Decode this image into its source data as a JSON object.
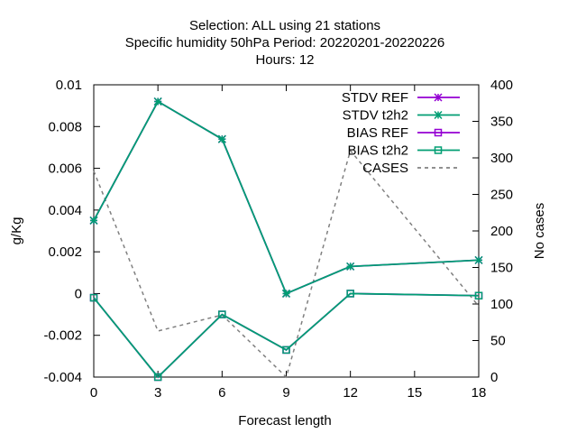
{
  "chart_data": {
    "type": "line",
    "title_lines": [
      "Selection: ALL using    21 stations",
      "Specific humidity 50hPa   Period: 20220201-20220226",
      "Hours:  12"
    ],
    "xlabel": "Forecast length",
    "ylabel": "g/Kg",
    "y2label": "No cases",
    "xlim": [
      0,
      18
    ],
    "ylim": [
      -0.004,
      0.01
    ],
    "y2lim": [
      0,
      400
    ],
    "xticks": [
      "0",
      "3",
      "6",
      "9",
      "12",
      "15",
      "18"
    ],
    "yticks": [
      "-0.004",
      "-0.002",
      "0",
      "0.002",
      "0.004",
      "0.006",
      "0.008",
      "0.01"
    ],
    "y2ticks": [
      "0",
      "50",
      "100",
      "150",
      "200",
      "250",
      "300",
      "350",
      "400"
    ],
    "legend_position": "top-right",
    "grid": false,
    "series": [
      {
        "name": "STDV REF",
        "axis": "y",
        "color": "#9400d3",
        "marker": "star",
        "style": "solid",
        "x": [
          0,
          3,
          6,
          9,
          12,
          18
        ],
        "values": [
          0.0035,
          0.0092,
          0.0074,
          0.0,
          0.0013,
          0.0016
        ]
      },
      {
        "name": "STDV t2h2",
        "axis": "y",
        "color": "#009e73",
        "marker": "star",
        "style": "solid",
        "x": [
          0,
          3,
          6,
          9,
          12,
          18
        ],
        "values": [
          0.0035,
          0.0092,
          0.0074,
          0.0,
          0.0013,
          0.0016
        ]
      },
      {
        "name": "BIAS REF",
        "axis": "y",
        "color": "#9400d3",
        "marker": "square",
        "style": "solid",
        "x": [
          0,
          3,
          6,
          9,
          12,
          18
        ],
        "values": [
          -0.0002,
          -0.004,
          -0.001,
          -0.0027,
          0.0,
          -0.0001
        ]
      },
      {
        "name": "BIAS t2h2",
        "axis": "y",
        "color": "#009e73",
        "marker": "square",
        "style": "solid",
        "x": [
          0,
          3,
          6,
          9,
          12,
          18
        ],
        "values": [
          -0.0002,
          -0.004,
          -0.001,
          -0.0027,
          0.0,
          -0.0001
        ]
      },
      {
        "name": "CASES",
        "axis": "y2",
        "color": "#808080",
        "marker": "none",
        "style": "dashed",
        "x": [
          0,
          3,
          6,
          9,
          12,
          18
        ],
        "values": [
          282,
          63,
          85,
          0,
          310,
          97
        ]
      }
    ]
  }
}
